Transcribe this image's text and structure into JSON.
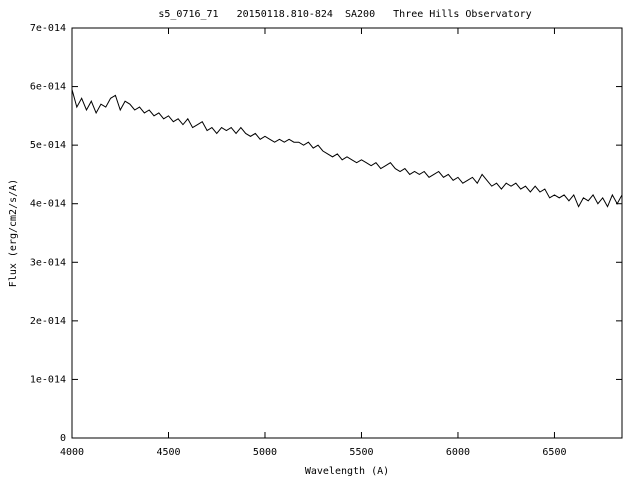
{
  "chart_data": {
    "type": "line",
    "title": "s5_0716_71   20150118.810-824  SA200   Three Hills Observatory",
    "x_label": "Wavelength (A)",
    "y_label": "Flux (erg/cm2/s/A)",
    "xlim": [
      4000,
      6850
    ],
    "ylim": [
      0,
      7e-14
    ],
    "xticks": [
      4000,
      4500,
      5000,
      5500,
      6000,
      6500
    ],
    "yticks": [
      0,
      {
        "value": 1e-14,
        "label": "1e-014"
      },
      {
        "value": 2e-14,
        "label": "2e-014"
      },
      {
        "value": 3e-14,
        "label": "3e-014"
      },
      {
        "value": 4e-14,
        "label": "4e-014"
      },
      {
        "value": 5e-14,
        "label": "5e-014"
      },
      {
        "value": 6e-14,
        "label": "6e-014"
      },
      {
        "value": 7e-14,
        "label": "7e-014"
      }
    ],
    "color": "#000000",
    "x": [
      4000,
      4025,
      4050,
      4075,
      4100,
      4125,
      4150,
      4175,
      4200,
      4225,
      4250,
      4275,
      4300,
      4325,
      4350,
      4375,
      4400,
      4425,
      4450,
      4475,
      4500,
      4525,
      4550,
      4575,
      4600,
      4625,
      4650,
      4675,
      4700,
      4725,
      4750,
      4775,
      4800,
      4825,
      4850,
      4875,
      4900,
      4925,
      4950,
      4975,
      5000,
      5025,
      5050,
      5075,
      5100,
      5125,
      5150,
      5175,
      5200,
      5225,
      5250,
      5275,
      5300,
      5325,
      5350,
      5375,
      5400,
      5425,
      5450,
      5475,
      5500,
      5525,
      5550,
      5575,
      5600,
      5625,
      5650,
      5675,
      5700,
      5725,
      5750,
      5775,
      5800,
      5825,
      5850,
      5875,
      5900,
      5925,
      5950,
      5975,
      6000,
      6025,
      6050,
      6075,
      6100,
      6125,
      6150,
      6175,
      6200,
      6225,
      6250,
      6275,
      6300,
      6325,
      6350,
      6375,
      6400,
      6425,
      6450,
      6475,
      6500,
      6525,
      6550,
      6575,
      6600,
      6625,
      6650,
      6675,
      6700,
      6725,
      6750,
      6775,
      6800,
      6825,
      6850
    ],
    "values": [
      5.95e-14,
      5.65e-14,
      5.8e-14,
      5.6e-14,
      5.75e-14,
      5.55e-14,
      5.7e-14,
      5.65e-14,
      5.8e-14,
      5.85e-14,
      5.6e-14,
      5.75e-14,
      5.7e-14,
      5.6e-14,
      5.65e-14,
      5.55e-14,
      5.6e-14,
      5.5e-14,
      5.55e-14,
      5.45e-14,
      5.5e-14,
      5.4e-14,
      5.45e-14,
      5.35e-14,
      5.45e-14,
      5.3e-14,
      5.35e-14,
      5.4e-14,
      5.25e-14,
      5.3e-14,
      5.2e-14,
      5.3e-14,
      5.25e-14,
      5.3e-14,
      5.2e-14,
      5.3e-14,
      5.2e-14,
      5.15e-14,
      5.2e-14,
      5.1e-14,
      5.15e-14,
      5.1e-14,
      5.05e-14,
      5.1e-14,
      5.05e-14,
      5.1e-14,
      5.05e-14,
      5.05e-14,
      5e-14,
      5.05e-14,
      4.95e-14,
      5e-14,
      4.9e-14,
      4.85e-14,
      4.8e-14,
      4.85e-14,
      4.75e-14,
      4.8e-14,
      4.75e-14,
      4.7e-14,
      4.75e-14,
      4.7e-14,
      4.65e-14,
      4.7e-14,
      4.6e-14,
      4.65e-14,
      4.7e-14,
      4.6e-14,
      4.55e-14,
      4.6e-14,
      4.5e-14,
      4.55e-14,
      4.5e-14,
      4.55e-14,
      4.45e-14,
      4.5e-14,
      4.55e-14,
      4.45e-14,
      4.5e-14,
      4.4e-14,
      4.45e-14,
      4.35e-14,
      4.4e-14,
      4.45e-14,
      4.35e-14,
      4.5e-14,
      4.4e-14,
      4.3e-14,
      4.35e-14,
      4.25e-14,
      4.35e-14,
      4.3e-14,
      4.35e-14,
      4.25e-14,
      4.3e-14,
      4.2e-14,
      4.3e-14,
      4.2e-14,
      4.25e-14,
      4.1e-14,
      4.15e-14,
      4.1e-14,
      4.15e-14,
      4.05e-14,
      4.15e-14,
      3.95e-14,
      4.1e-14,
      4.05e-14,
      4.15e-14,
      4e-14,
      4.1e-14,
      3.95e-14,
      4.15e-14,
      4e-14,
      4.15e-14
    ]
  }
}
